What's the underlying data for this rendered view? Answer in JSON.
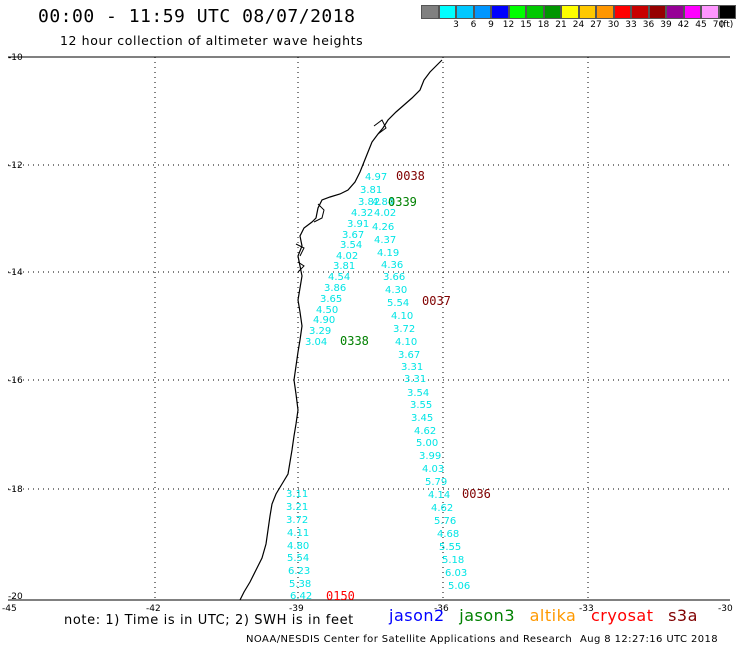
{
  "title": "00:00 - 11:59 UTC 08/07/2018",
  "subtitle": "12 hour collection of altimeter wave heights",
  "legend": {
    "swatches": [
      {
        "color": "#808080",
        "label": ""
      },
      {
        "color": "#00ffff",
        "label": "3"
      },
      {
        "color": "#00c8ff",
        "label": "6"
      },
      {
        "color": "#0096ff",
        "label": "9"
      },
      {
        "color": "#0000ff",
        "label": "12"
      },
      {
        "color": "#00ff00",
        "label": "15"
      },
      {
        "color": "#00c800",
        "label": "18"
      },
      {
        "color": "#009600",
        "label": "21"
      },
      {
        "color": "#ffff00",
        "label": "24"
      },
      {
        "color": "#ffc800",
        "label": "27"
      },
      {
        "color": "#ff9600",
        "label": "30"
      },
      {
        "color": "#ff0000",
        "label": "33"
      },
      {
        "color": "#c80000",
        "label": "36"
      },
      {
        "color": "#960000",
        "label": "39"
      },
      {
        "color": "#960096",
        "label": "42"
      },
      {
        "color": "#ff00ff",
        "label": "45"
      },
      {
        "color": "#ff96ff",
        "label": "70"
      },
      {
        "color": "#000000",
        "label": "(ft)"
      }
    ]
  },
  "axes": {
    "lat_labels": [
      "-10",
      "-12",
      "-14",
      "-16",
      "-18",
      "-20"
    ],
    "lon_labels": [
      "-45",
      "-42",
      "-39",
      "-36",
      "-33",
      "-30"
    ]
  },
  "colors": {
    "wave": "#00e5e5",
    "jason2": "#0000ff",
    "jason3": "#008000",
    "altika": "#ff9900",
    "cryosat": "#ff0000",
    "s3a": "#800000"
  },
  "tracks": [
    {
      "values": [
        "4.97",
        "3.81",
        "3.82",
        "4.84",
        "4.02",
        "4.32",
        "3.91",
        "4.26",
        "3.67",
        "4.37",
        "3.54",
        "4.19",
        "4.02",
        "4.36",
        "3.81",
        "3.66",
        "4.54",
        "4.30",
        "3.86",
        "5.54",
        "3.65",
        "4.10",
        "4.50",
        "3.72",
        "4.90",
        "4.10",
        "3.29",
        "3.67",
        "3.04",
        "3.31"
      ]
    }
  ],
  "waves_ne": [
    "4.97",
    "3.81",
    "3.82",
    "4.84",
    "4.02",
    "4.32",
    "3.91",
    "4.26",
    "3.67",
    "4.37",
    "3.54",
    "4.19",
    "4.02",
    "4.36",
    "3.81",
    "3.66"
  ],
  "waves_mid": [
    "4.54",
    "3.86",
    "3.65",
    "4.50",
    "4.90",
    "3.29",
    "3.04"
  ],
  "waves_mid2": [
    "4.30",
    "5.54",
    "4.10",
    "3.72",
    "4.10",
    "3.67",
    "3.31",
    "3.31",
    "3.54",
    "3.55",
    "3.45",
    "4.62",
    "5.00",
    "3.99",
    "4.03",
    "5.79",
    "4.14",
    "4.62",
    "5.76",
    "4.68",
    "5.55",
    "5.18",
    "6.03",
    "5.06"
  ],
  "waves_sw": [
    "3.11",
    "3.21",
    "3.72",
    "4.11",
    "4.80",
    "5.54",
    "6.23",
    "5.38",
    "6.42"
  ],
  "time_labels": [
    {
      "text": "0038",
      "sat": "s3a"
    },
    {
      "text": "0339",
      "sat": "jason3"
    },
    {
      "text": "0037",
      "sat": "s3a"
    },
    {
      "text": "0338",
      "sat": "jason3"
    },
    {
      "text": "0036",
      "sat": "s3a"
    },
    {
      "text": "0150",
      "sat": "cryosat"
    }
  ],
  "note": "note: 1) Time is in UTC; 2) SWH is in feet",
  "satellites": {
    "jason2": "jason2",
    "jason3": "jason3",
    "altika": "altika",
    "cryosat": "cryosat",
    "s3a": "s3a"
  },
  "footer": "NOAA/NESDIS Center for Satellite Applications and Research",
  "stamp": "Aug  8 12:27:16 UTC 2018"
}
